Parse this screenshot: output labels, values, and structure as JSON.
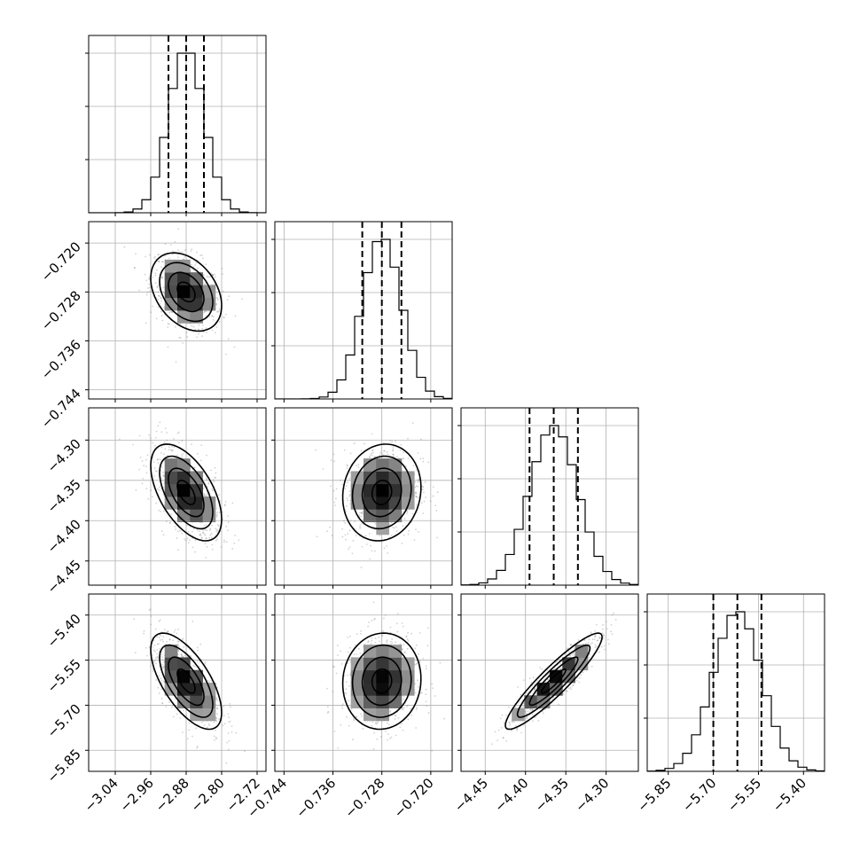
{
  "chart_data": {
    "type": "corner",
    "title": "",
    "grid": true,
    "parameters": [
      {
        "key": "p0",
        "label": "",
        "mean": -2.88,
        "sigma": 0.04,
        "range": [
          -3.1,
          -2.7
        ],
        "quantiles": [
          -2.92,
          -2.88,
          -2.84
        ],
        "ticks": [
          -3.04,
          -2.96,
          -2.88,
          -2.8,
          -2.72
        ],
        "tick_labels": [
          "−3.04",
          "−2.96",
          "−2.88",
          "−2.80",
          "−2.72"
        ]
      },
      {
        "key": "p1",
        "label": "",
        "mean": -0.728,
        "sigma": 0.0032,
        "range": [
          -0.7455,
          -0.7165
        ],
        "quantiles": [
          -0.7312,
          -0.728,
          -0.7248
        ],
        "ticks": [
          -0.744,
          -0.736,
          -0.728,
          -0.72
        ],
        "tick_labels": [
          "−0.744",
          "−0.736",
          "−0.728",
          "−0.720"
        ]
      },
      {
        "key": "p2",
        "label": "",
        "mean": -4.365,
        "sigma": 0.03,
        "range": [
          -4.48,
          -4.26
        ],
        "quantiles": [
          -4.395,
          -4.365,
          -4.335
        ],
        "ticks": [
          -4.45,
          -4.4,
          -4.35,
          -4.3
        ],
        "tick_labels": [
          "−4.45",
          "−4.40",
          "−4.35",
          "−4.30"
        ]
      },
      {
        "key": "p3",
        "label": "",
        "mean": -5.62,
        "sigma": 0.08,
        "range": [
          -5.92,
          -5.33
        ],
        "quantiles": [
          -5.7,
          -5.62,
          -5.54
        ],
        "ticks": [
          -5.85,
          -5.7,
          -5.55,
          -5.4
        ],
        "tick_labels": [
          "−5.85",
          "−5.70",
          "−5.55",
          "−5.40"
        ]
      }
    ],
    "correlations": {
      "1-0": -0.35,
      "2-0": -0.55,
      "2-1": 0.1,
      "3-0": -0.65,
      "3-1": 0.05,
      "3-2": 0.92
    },
    "histogram_bins": 20,
    "contour_levels_sigma": [
      0.5,
      1.0,
      1.5,
      2.0
    ]
  },
  "colors": {
    "points": "#7f7f7f",
    "density_max": "#000000",
    "contour": "#000000",
    "grid": "#b0b0b0"
  }
}
